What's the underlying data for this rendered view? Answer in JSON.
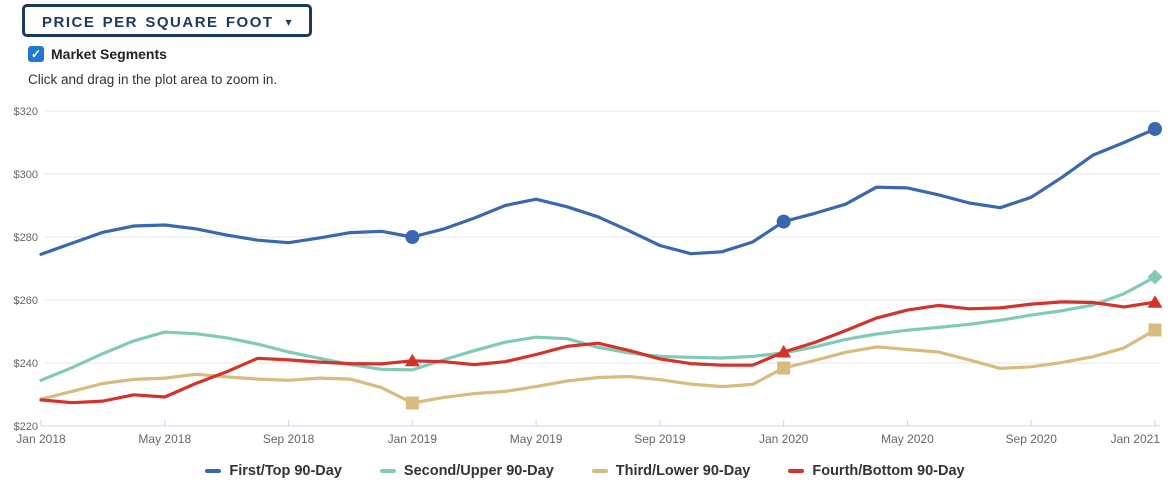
{
  "header": {
    "button_label": "Price Per Square Foot",
    "caret": "▾",
    "checkbox": {
      "label": "Market Segments",
      "checked": true,
      "check_icon": "✓"
    },
    "instruction": "Click and drag in the plot area to zoom in."
  },
  "colors": {
    "grid": "#e6e6e6",
    "axis": "#ccd6eb",
    "tick_text": "#666666",
    "legend_text": "#333333",
    "navy": "#1b3a60",
    "checkbox_blue": "#2277d4"
  },
  "chart_data": {
    "type": "line",
    "grid": true,
    "legend_position": "bottom",
    "ylim": [
      220,
      320
    ],
    "y_ticks": [
      220,
      240,
      260,
      280,
      300,
      320
    ],
    "y_tick_labels": [
      "$220",
      "$240",
      "$260",
      "$280",
      "$300",
      "$320"
    ],
    "x_tick_indices": [
      0,
      4,
      8,
      12,
      16,
      20,
      24,
      28,
      32,
      36
    ],
    "x_tick_labels": [
      "Jan 2018",
      "May 2018",
      "Sep 2018",
      "Jan 2019",
      "May 2019",
      "Sep 2019",
      "Jan 2020",
      "May 2020",
      "Sep 2020",
      "Jan 2021"
    ],
    "marker_indices": [
      12,
      24,
      36
    ],
    "x": [
      "Jan 2018",
      "Feb 2018",
      "Mar 2018",
      "Apr 2018",
      "May 2018",
      "Jun 2018",
      "Jul 2018",
      "Aug 2018",
      "Sep 2018",
      "Oct 2018",
      "Nov 2018",
      "Dec 2018",
      "Jan 2019",
      "Feb 2019",
      "Mar 2019",
      "Apr 2019",
      "May 2019",
      "Jun 2019",
      "Jul 2019",
      "Aug 2019",
      "Sep 2019",
      "Oct 2019",
      "Nov 2019",
      "Dec 2019",
      "Jan 2020",
      "Feb 2020",
      "Mar 2020",
      "Apr 2020",
      "May 2020",
      "Jun 2020",
      "Jul 2020",
      "Aug 2020",
      "Sep 2020",
      "Oct 2020",
      "Nov 2020",
      "Dec 2020",
      "Jan 2021"
    ],
    "series": [
      {
        "name": "First/Top 90-Day",
        "color": "#3a68b0",
        "marker": "circle",
        "values": [
          274.5,
          278.0,
          281.5,
          283.5,
          283.8,
          282.6,
          280.6,
          279.0,
          278.2,
          279.7,
          281.4,
          281.8,
          280.0,
          282.5,
          286.0,
          290.0,
          292.0,
          289.6,
          286.4,
          282.0,
          277.3,
          274.7,
          275.3,
          278.4,
          284.9,
          287.5,
          290.4,
          295.8,
          295.6,
          293.4,
          290.8,
          289.3,
          292.6,
          299.0,
          306.0,
          310.0,
          314.3
        ]
      },
      {
        "name": "Second/Upper 90-Day",
        "color": "#80cbb8",
        "marker": "diamond",
        "marker_indices": [
          36
        ],
        "values": [
          234.5,
          238.5,
          243.0,
          247.0,
          249.8,
          249.3,
          248.0,
          246.0,
          243.5,
          241.5,
          239.5,
          238.0,
          237.8,
          241.0,
          243.9,
          246.6,
          248.2,
          247.7,
          245.0,
          243.2,
          242.1,
          241.8,
          241.6,
          242.1,
          243.2,
          245.1,
          247.5,
          249.2,
          250.4,
          251.3,
          252.3,
          253.6,
          255.2,
          256.6,
          258.4,
          262.0,
          267.3
        ]
      },
      {
        "name": "Third/Lower 90-Day",
        "color": "#d8bb7f",
        "marker": "square",
        "values": [
          228.5,
          231.0,
          233.5,
          234.8,
          235.2,
          236.4,
          235.6,
          234.9,
          234.5,
          235.2,
          234.9,
          232.2,
          227.3,
          229.0,
          230.3,
          231.0,
          232.5,
          234.3,
          235.4,
          235.7,
          234.7,
          233.3,
          232.5,
          233.2,
          238.4,
          240.8,
          243.4,
          245.1,
          244.3,
          243.5,
          241.0,
          238.3,
          238.8,
          240.2,
          242.0,
          244.8,
          250.5
        ]
      },
      {
        "name": "Fourth/Bottom 90-Day",
        "color": "#d2342b",
        "marker": "triangle-up",
        "values": [
          228.3,
          227.4,
          227.9,
          229.9,
          229.2,
          233.5,
          237.2,
          241.5,
          241.0,
          240.3,
          239.8,
          239.7,
          240.7,
          240.4,
          239.5,
          240.4,
          242.7,
          245.3,
          246.3,
          244.0,
          241.3,
          239.8,
          239.3,
          239.3,
          243.5,
          246.5,
          250.3,
          254.3,
          256.8,
          258.3,
          257.2,
          257.5,
          258.7,
          259.4,
          259.2,
          257.8,
          259.3
        ]
      }
    ]
  }
}
